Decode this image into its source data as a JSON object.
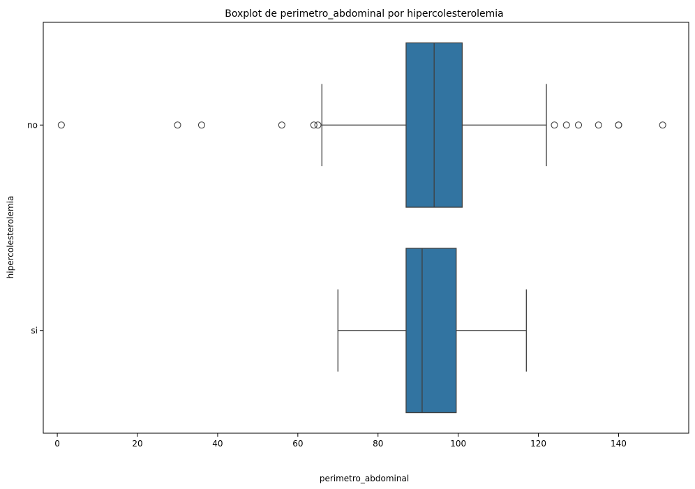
{
  "chart_data": {
    "type": "boxplot",
    "orientation": "horizontal",
    "title": "Boxplot de perimetro_abdominal por hipercolesterolemia",
    "xlabel": "perimetro_abdominal",
    "ylabel": "hipercolesterolemia",
    "xlim": [
      -3.5,
      157.5
    ],
    "xticks": [
      0,
      20,
      40,
      60,
      80,
      100,
      120,
      140
    ],
    "grid": false,
    "color": "#3274a1",
    "line_color": "#3f3f3f",
    "categories": [
      "no",
      "si"
    ],
    "boxes": [
      {
        "category": "no",
        "whisker_low": 66,
        "q1": 87,
        "median": 94,
        "q3": 101,
        "whisker_high": 122,
        "outliers": [
          1,
          30,
          36,
          56,
          64,
          65,
          124,
          127,
          130,
          135,
          140,
          140,
          151
        ]
      },
      {
        "category": "si",
        "whisker_low": 70,
        "q1": 87,
        "median": 91,
        "q3": 99.5,
        "whisker_high": 117,
        "outliers": []
      }
    ]
  }
}
